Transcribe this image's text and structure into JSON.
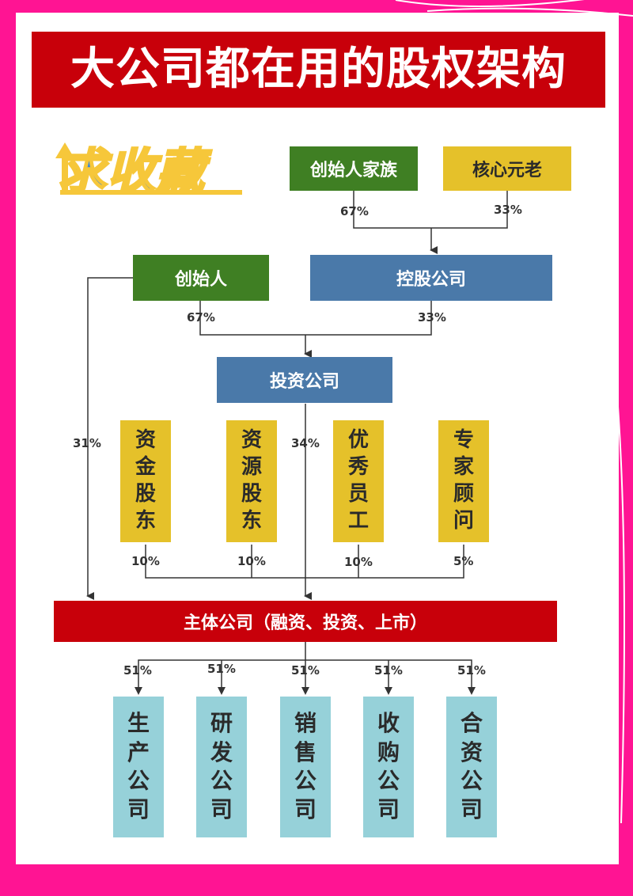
{
  "title": "大公司都在用的股权架构",
  "badge": "求收藏",
  "colors": {
    "green": "#3f7f23",
    "gold": "#e5c12a",
    "blue": "#4a79a9",
    "red": "#c8000a",
    "cyan": "#96d1d9",
    "background": "#ff1493"
  },
  "nodes": {
    "founder_family": "创始人家族",
    "core_veterans": "核心元老",
    "founder": "创始人",
    "holding_company": "控股公司",
    "investment_company": "投资公司",
    "capital_shareholders": [
      "资",
      "金",
      "股",
      "东"
    ],
    "resource_shareholders": [
      "资",
      "源",
      "股",
      "东"
    ],
    "excellent_employees": [
      "优",
      "秀",
      "员",
      "工"
    ],
    "expert_advisors": [
      "专",
      "家",
      "顾",
      "问"
    ],
    "main_company": "主体公司（融资、投资、上市）",
    "subsidiaries": [
      [
        "生",
        "产",
        "公",
        "司"
      ],
      [
        "研",
        "发",
        "公",
        "司"
      ],
      [
        "销",
        "售",
        "公",
        "司"
      ],
      [
        "收",
        "购",
        "公",
        "司"
      ],
      [
        "合",
        "资",
        "公",
        "司"
      ]
    ]
  },
  "percentages": {
    "family_to_holding": "67%",
    "veterans_to_holding": "33%",
    "founder_to_investment": "67%",
    "holding_to_investment": "33%",
    "founder_to_main": "31%",
    "investment_to_main": "34%",
    "capital_to_main": "10%",
    "resource_to_main": "10%",
    "employees_to_main": "10%",
    "advisors_to_main": "5%",
    "subsidiaries": [
      "51%",
      "51%",
      "51%",
      "51%",
      "51%"
    ]
  }
}
